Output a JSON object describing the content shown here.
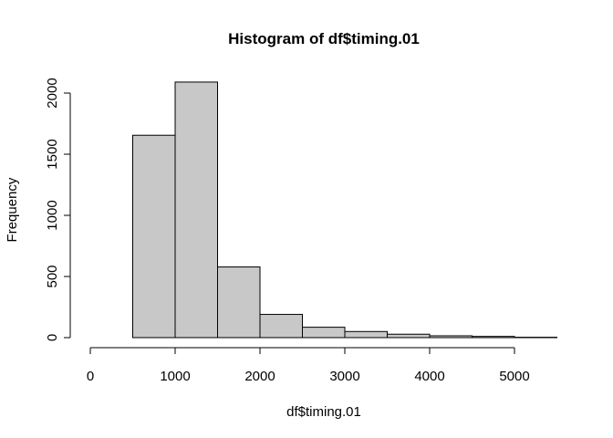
{
  "chart_data": {
    "type": "bar",
    "title": "Histogram of df$timing.01",
    "xlabel": "df$timing.01",
    "ylabel": "Frequency",
    "bin_edges": [
      0,
      500,
      1000,
      1500,
      2000,
      2500,
      3000,
      3500,
      4000,
      4500,
      5000,
      5500
    ],
    "values": [
      0,
      1655,
      2090,
      578,
      190,
      85,
      50,
      28,
      15,
      10,
      3
    ],
    "xlim": [
      0,
      5500
    ],
    "ylim": [
      0,
      2100
    ],
    "x_ticks": [
      0,
      1000,
      2000,
      3000,
      4000,
      5000
    ],
    "x_tick_labels": [
      "0",
      "1000",
      "2000",
      "3000",
      "4000",
      "5000"
    ],
    "y_ticks": [
      0,
      500,
      1000,
      1500,
      2000
    ],
    "y_tick_labels": [
      "0",
      "500",
      "1000",
      "1500",
      "2000"
    ],
    "grid": false,
    "legend": "none",
    "bar_color": "#c8c8c8",
    "edge_color": "#000000"
  }
}
